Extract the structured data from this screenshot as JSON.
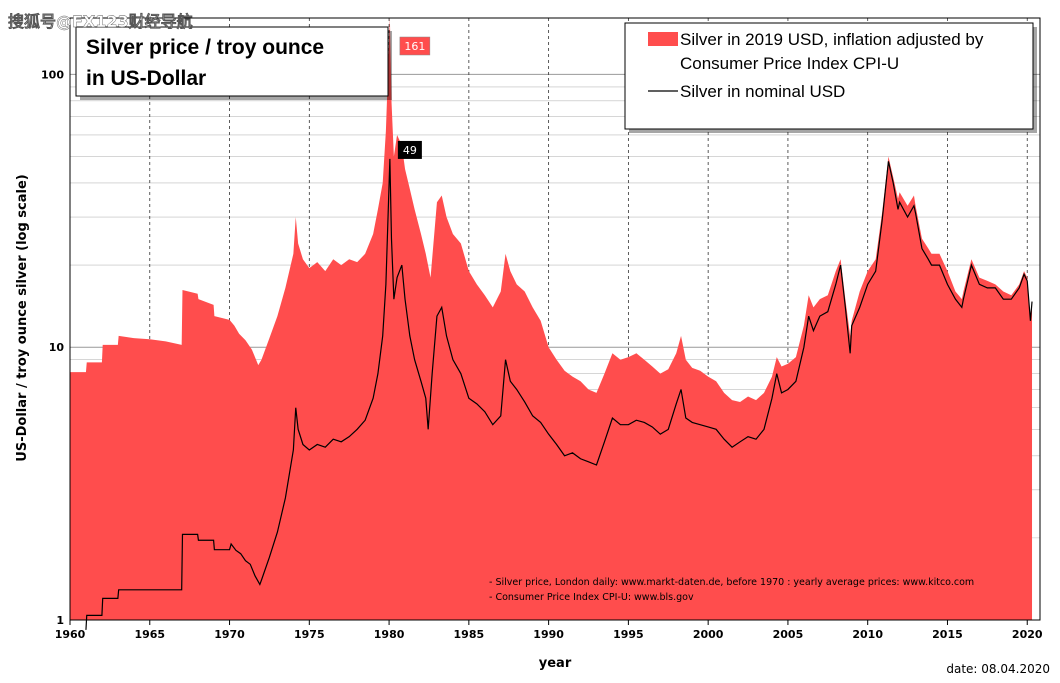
{
  "watermark": "搜狐号@FX123财经导航",
  "date_label": "date: 08.04.2020",
  "notes": [
    "- Silver price, London daily: www.markt-daten.de,  before 1970 :  yearly  average prices: www.kitco.com",
    "- Consumer Price Index CPI-U: www.bls.gov"
  ],
  "colors": {
    "real": "#ff4d4d",
    "nominal": "#000000",
    "grid": "#bdbdbd",
    "peak_badge": "#ff4d4d"
  },
  "chart_data": {
    "type": "area",
    "title": [
      "Silver price / troy ounce",
      "in US-Dollar"
    ],
    "xlabel": "year",
    "ylabel": "US-Dollar / troy ounce silver (log scale)",
    "xlim": [
      1960,
      2020.8
    ],
    "ylim": [
      1,
      161
    ],
    "yscale": "log",
    "grid": true,
    "x_ticks": [
      1960,
      1965,
      1970,
      1975,
      1980,
      1985,
      1990,
      1995,
      2000,
      2005,
      2010,
      2015,
      2020
    ],
    "y_ticks": [
      1,
      10,
      100
    ],
    "legend": {
      "placement": "top-right",
      "entries": [
        "Silver in 2019 USD, inflation adjusted by",
        "Consumer Price Index CPI-U",
        "Silver in nominal USD"
      ]
    },
    "annotations": [
      {
        "text": "161",
        "x": 1980.05,
        "y": 161,
        "series": "Silver in 2019 USD, inflation adjusted by Consumer Price Index CPI-U"
      },
      {
        "text": "49",
        "x": 1980.05,
        "y": 49,
        "series": "Silver in nominal USD"
      }
    ],
    "series": [
      {
        "name": "Silver in 2019 USD, inflation adjusted by Consumer Price Index CPI-U",
        "style": "area",
        "points": [
          [
            1960,
            8.1
          ],
          [
            1961,
            8.1
          ],
          [
            1961.05,
            8.8
          ],
          [
            1962,
            8.8
          ],
          [
            1962.05,
            10.2
          ],
          [
            1963,
            10.2
          ],
          [
            1963.05,
            11
          ],
          [
            1964,
            10.8
          ],
          [
            1965,
            10.7
          ],
          [
            1966,
            10.5
          ],
          [
            1967,
            10.2
          ],
          [
            1967.05,
            16.2
          ],
          [
            1968,
            15.7
          ],
          [
            1968.05,
            15
          ],
          [
            1969,
            14.3
          ],
          [
            1969.05,
            13
          ],
          [
            1970,
            12.6
          ],
          [
            1970.3,
            12
          ],
          [
            1970.6,
            11.2
          ],
          [
            1971,
            10.6
          ],
          [
            1971.4,
            9.8
          ],
          [
            1971.8,
            8.6
          ],
          [
            1972,
            9
          ],
          [
            1972.5,
            10.8
          ],
          [
            1973,
            13
          ],
          [
            1973.5,
            16.5
          ],
          [
            1974,
            22
          ],
          [
            1974.15,
            30
          ],
          [
            1974.3,
            24
          ],
          [
            1974.6,
            21
          ],
          [
            1975,
            19.5
          ],
          [
            1975.5,
            20.5
          ],
          [
            1976,
            19
          ],
          [
            1976.5,
            21
          ],
          [
            1977,
            20
          ],
          [
            1977.5,
            21
          ],
          [
            1978,
            20.5
          ],
          [
            1978.5,
            22
          ],
          [
            1979,
            26
          ],
          [
            1979.3,
            32
          ],
          [
            1979.6,
            40
          ],
          [
            1979.8,
            62
          ],
          [
            1980.05,
            161
          ],
          [
            1980.15,
            80
          ],
          [
            1980.3,
            50
          ],
          [
            1980.5,
            60
          ],
          [
            1980.8,
            55
          ],
          [
            1981,
            45
          ],
          [
            1981.3,
            38
          ],
          [
            1981.6,
            32
          ],
          [
            1982,
            26
          ],
          [
            1982.3,
            22
          ],
          [
            1982.6,
            18
          ],
          [
            1983,
            34
          ],
          [
            1983.3,
            36
          ],
          [
            1983.6,
            30
          ],
          [
            1984,
            26
          ],
          [
            1984.5,
            24
          ],
          [
            1985,
            19
          ],
          [
            1985.5,
            17
          ],
          [
            1986,
            15.5
          ],
          [
            1986.5,
            14
          ],
          [
            1987,
            16
          ],
          [
            1987.3,
            22
          ],
          [
            1987.6,
            19
          ],
          [
            1988,
            17
          ],
          [
            1988.5,
            16
          ],
          [
            1989,
            14
          ],
          [
            1989.5,
            12.5
          ],
          [
            1990,
            10
          ],
          [
            1990.5,
            9
          ],
          [
            1991,
            8.2
          ],
          [
            1991.5,
            7.8
          ],
          [
            1992,
            7.5
          ],
          [
            1992.5,
            7
          ],
          [
            1993,
            6.8
          ],
          [
            1993.5,
            8
          ],
          [
            1994,
            9.5
          ],
          [
            1994.5,
            9
          ],
          [
            1995,
            9.2
          ],
          [
            1995.5,
            9.5
          ],
          [
            1996,
            9
          ],
          [
            1996.5,
            8.5
          ],
          [
            1997,
            8
          ],
          [
            1997.5,
            8.3
          ],
          [
            1998,
            9.5
          ],
          [
            1998.3,
            11
          ],
          [
            1998.6,
            9
          ],
          [
            1999,
            8.4
          ],
          [
            1999.5,
            8.2
          ],
          [
            2000,
            7.8
          ],
          [
            2000.5,
            7.5
          ],
          [
            2001,
            6.8
          ],
          [
            2001.5,
            6.4
          ],
          [
            2002,
            6.3
          ],
          [
            2002.5,
            6.6
          ],
          [
            2003,
            6.4
          ],
          [
            2003.5,
            6.8
          ],
          [
            2004,
            7.8
          ],
          [
            2004.3,
            9.2
          ],
          [
            2004.6,
            8.5
          ],
          [
            2005,
            8.7
          ],
          [
            2005.5,
            9.2
          ],
          [
            2006,
            12
          ],
          [
            2006.3,
            15.5
          ],
          [
            2006.6,
            14
          ],
          [
            2007,
            15
          ],
          [
            2007.5,
            15.5
          ],
          [
            2008,
            19
          ],
          [
            2008.3,
            21
          ],
          [
            2008.6,
            15
          ],
          [
            2008.9,
            11
          ],
          [
            2009,
            12.5
          ],
          [
            2009.5,
            16
          ],
          [
            2010,
            19
          ],
          [
            2010.5,
            21
          ],
          [
            2010.9,
            31
          ],
          [
            2011.3,
            50
          ],
          [
            2011.6,
            42
          ],
          [
            2011.9,
            35
          ],
          [
            2012,
            37
          ],
          [
            2012.5,
            33
          ],
          [
            2012.9,
            36
          ],
          [
            2013,
            33
          ],
          [
            2013.4,
            25
          ],
          [
            2013.8,
            23
          ],
          [
            2014,
            22
          ],
          [
            2014.5,
            22
          ],
          [
            2015,
            19
          ],
          [
            2015.5,
            16
          ],
          [
            2015.9,
            15
          ],
          [
            2016,
            16
          ],
          [
            2016.5,
            21
          ],
          [
            2017,
            18
          ],
          [
            2017.5,
            17.5
          ],
          [
            2018,
            17
          ],
          [
            2018.5,
            16
          ],
          [
            2019,
            15.5
          ],
          [
            2019.5,
            17
          ],
          [
            2019.8,
            19
          ],
          [
            2020,
            18
          ],
          [
            2020.2,
            13
          ],
          [
            2020.3,
            14.8
          ]
        ]
      },
      {
        "name": "Silver in nominal USD",
        "style": "line",
        "points": [
          [
            1961,
            0.92
          ],
          [
            1961.05,
            1.04
          ],
          [
            1962,
            1.04
          ],
          [
            1962.05,
            1.2
          ],
          [
            1963,
            1.2
          ],
          [
            1963.05,
            1.29
          ],
          [
            1967,
            1.29
          ],
          [
            1967.05,
            2.06
          ],
          [
            1968,
            2.06
          ],
          [
            1968.05,
            1.96
          ],
          [
            1969,
            1.96
          ],
          [
            1969.05,
            1.81
          ],
          [
            1970,
            1.81
          ],
          [
            1970.1,
            1.9
          ],
          [
            1970.4,
            1.8
          ],
          [
            1970.7,
            1.75
          ],
          [
            1971,
            1.65
          ],
          [
            1971.3,
            1.6
          ],
          [
            1971.6,
            1.45
          ],
          [
            1971.9,
            1.35
          ],
          [
            1972,
            1.4
          ],
          [
            1972.5,
            1.7
          ],
          [
            1973,
            2.1
          ],
          [
            1973.5,
            2.8
          ],
          [
            1974,
            4.2
          ],
          [
            1974.15,
            6
          ],
          [
            1974.3,
            5
          ],
          [
            1974.6,
            4.4
          ],
          [
            1975,
            4.2
          ],
          [
            1975.5,
            4.4
          ],
          [
            1976,
            4.3
          ],
          [
            1976.5,
            4.6
          ],
          [
            1977,
            4.5
          ],
          [
            1977.5,
            4.7
          ],
          [
            1978,
            5
          ],
          [
            1978.5,
            5.4
          ],
          [
            1979,
            6.5
          ],
          [
            1979.3,
            8
          ],
          [
            1979.6,
            11
          ],
          [
            1979.8,
            17
          ],
          [
            1980.05,
            49
          ],
          [
            1980.15,
            25
          ],
          [
            1980.3,
            15
          ],
          [
            1980.5,
            18
          ],
          [
            1980.8,
            20
          ],
          [
            1981,
            15
          ],
          [
            1981.3,
            11
          ],
          [
            1981.6,
            9
          ],
          [
            1982,
            7.5
          ],
          [
            1982.3,
            6.5
          ],
          [
            1982.45,
            5
          ],
          [
            1982.7,
            8
          ],
          [
            1983,
            13
          ],
          [
            1983.3,
            14
          ],
          [
            1983.6,
            11
          ],
          [
            1984,
            9
          ],
          [
            1984.5,
            8
          ],
          [
            1985,
            6.5
          ],
          [
            1985.5,
            6.2
          ],
          [
            1986,
            5.8
          ],
          [
            1986.5,
            5.2
          ],
          [
            1987,
            5.6
          ],
          [
            1987.3,
            9
          ],
          [
            1987.6,
            7.5
          ],
          [
            1988,
            7
          ],
          [
            1988.5,
            6.3
          ],
          [
            1989,
            5.6
          ],
          [
            1989.5,
            5.3
          ],
          [
            1990,
            4.8
          ],
          [
            1990.5,
            4.4
          ],
          [
            1991,
            4
          ],
          [
            1991.5,
            4.1
          ],
          [
            1992,
            3.9
          ],
          [
            1992.5,
            3.8
          ],
          [
            1993,
            3.7
          ],
          [
            1993.5,
            4.5
          ],
          [
            1994,
            5.5
          ],
          [
            1994.5,
            5.2
          ],
          [
            1995,
            5.2
          ],
          [
            1995.5,
            5.4
          ],
          [
            1996,
            5.3
          ],
          [
            1996.5,
            5.1
          ],
          [
            1997,
            4.8
          ],
          [
            1997.5,
            5
          ],
          [
            1998,
            6.2
          ],
          [
            1998.3,
            7
          ],
          [
            1998.6,
            5.5
          ],
          [
            1999,
            5.3
          ],
          [
            1999.5,
            5.2
          ],
          [
            2000,
            5.1
          ],
          [
            2000.5,
            5
          ],
          [
            2001,
            4.6
          ],
          [
            2001.5,
            4.3
          ],
          [
            2002,
            4.5
          ],
          [
            2002.5,
            4.7
          ],
          [
            2003,
            4.6
          ],
          [
            2003.5,
            5
          ],
          [
            2004,
            6.5
          ],
          [
            2004.3,
            8
          ],
          [
            2004.6,
            6.8
          ],
          [
            2005,
            7
          ],
          [
            2005.5,
            7.5
          ],
          [
            2006,
            10
          ],
          [
            2006.3,
            13
          ],
          [
            2006.6,
            11.5
          ],
          [
            2007,
            13
          ],
          [
            2007.5,
            13.5
          ],
          [
            2008,
            17
          ],
          [
            2008.3,
            20
          ],
          [
            2008.6,
            14
          ],
          [
            2008.9,
            9.5
          ],
          [
            2009,
            12
          ],
          [
            2009.5,
            14
          ],
          [
            2010,
            17
          ],
          [
            2010.5,
            19
          ],
          [
            2010.9,
            29
          ],
          [
            2011.3,
            48
          ],
          [
            2011.6,
            40
          ],
          [
            2011.9,
            32
          ],
          [
            2012,
            34
          ],
          [
            2012.5,
            30
          ],
          [
            2012.9,
            33
          ],
          [
            2013,
            31
          ],
          [
            2013.4,
            23
          ],
          [
            2013.8,
            21
          ],
          [
            2014,
            20
          ],
          [
            2014.5,
            20
          ],
          [
            2015,
            17
          ],
          [
            2015.5,
            15
          ],
          [
            2015.9,
            14
          ],
          [
            2016,
            15
          ],
          [
            2016.5,
            20
          ],
          [
            2017,
            17
          ],
          [
            2017.5,
            16.5
          ],
          [
            2018,
            16.5
          ],
          [
            2018.5,
            15
          ],
          [
            2019,
            15
          ],
          [
            2019.5,
            16.5
          ],
          [
            2019.8,
            18.5
          ],
          [
            2020,
            17.5
          ],
          [
            2020.2,
            12.5
          ],
          [
            2020.3,
            14.7
          ]
        ]
      }
    ]
  }
}
